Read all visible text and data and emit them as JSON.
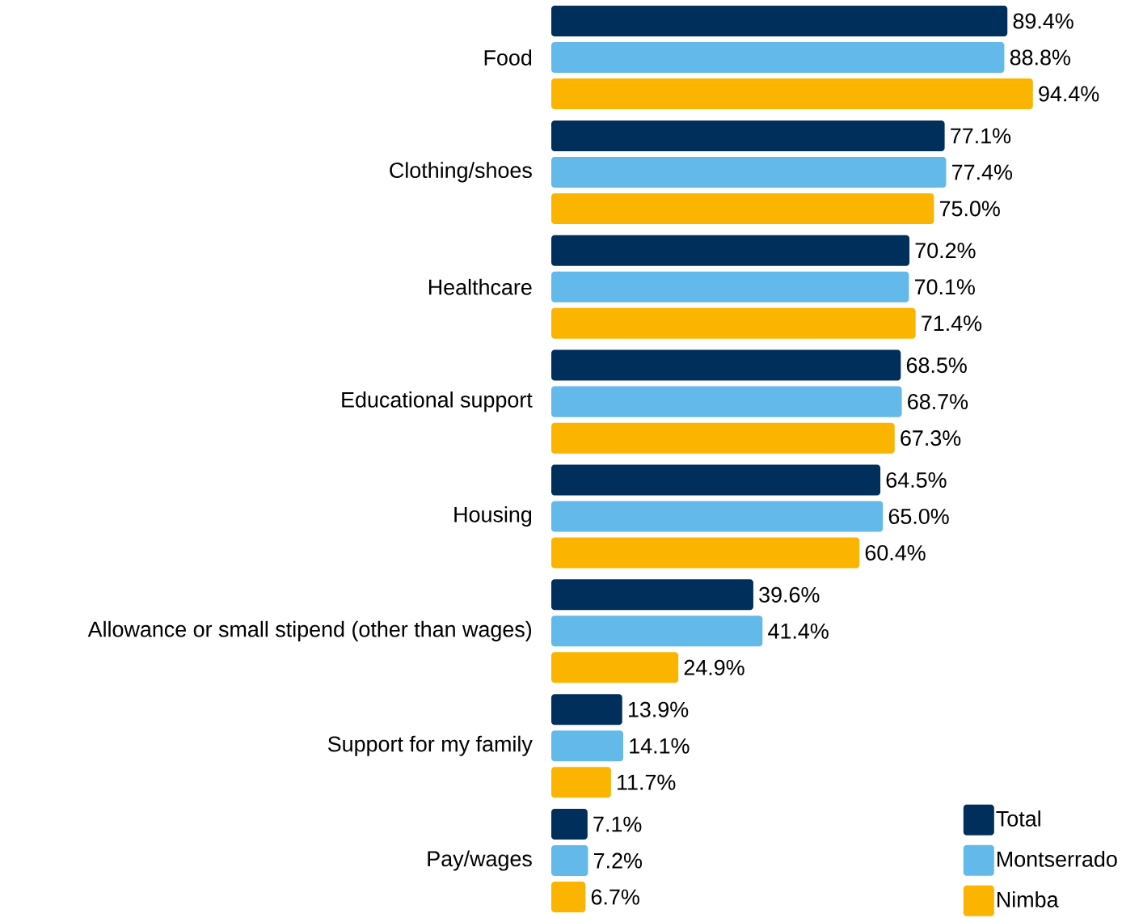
{
  "chart_data": {
    "type": "bar",
    "orientation": "horizontal",
    "legend": "bottom right",
    "categories": [
      "Food",
      "Clothing/shoes",
      "Healthcare",
      "Educational support",
      "Housing",
      "Allowance or small stipend (other than wages)",
      "Support for my family",
      "Pay/wages"
    ],
    "series": [
      {
        "name": "Total",
        "color": "#002f5c",
        "values": [
          89.4,
          77.1,
          70.2,
          68.5,
          64.5,
          39.6,
          13.9,
          7.1
        ],
        "value_labels": [
          "89.4%",
          "77.1%",
          "70.2%",
          "68.5%",
          "64.5%",
          "39.6%",
          "13.9%",
          "7.1%"
        ]
      },
      {
        "name": "Montserrado",
        "color": "#63b9e9",
        "values": [
          88.8,
          77.4,
          70.1,
          68.7,
          65.0,
          41.4,
          14.1,
          7.2
        ],
        "value_labels": [
          "88.8%",
          "77.4%",
          "70.1%",
          "68.7%",
          "65.0%",
          "41.4%",
          "14.1%",
          "7.2%"
        ]
      },
      {
        "name": "Nimba",
        "color": "#fbb500",
        "values": [
          94.4,
          75.0,
          71.4,
          67.3,
          60.4,
          24.9,
          11.7,
          6.7
        ],
        "value_labels": [
          "94.4%",
          "75.0%",
          "71.4%",
          "67.3%",
          "60.4%",
          "24.9%",
          "11.7%",
          "6.7%"
        ]
      }
    ]
  }
}
